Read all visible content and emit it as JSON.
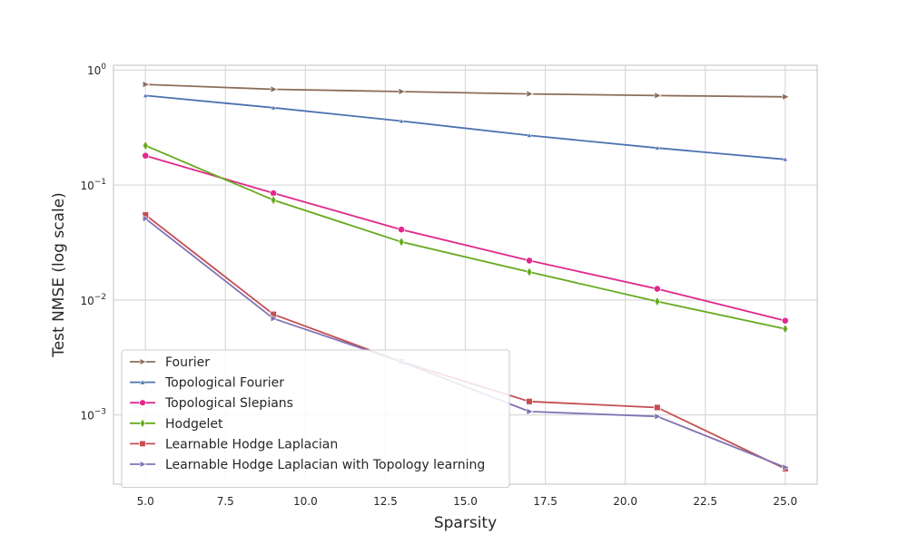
{
  "chart_data": {
    "type": "line",
    "xlabel": "Sparsity",
    "ylabel": "Test NMSE (log scale)",
    "yscale": "log",
    "xlim": [
      4.0,
      26.0
    ],
    "ylim": [
      0.00025,
      1.1
    ],
    "grid": true,
    "legend_position": "lower-left",
    "x": [
      5,
      9,
      13,
      17,
      21,
      25
    ],
    "x_ticks": [
      5.0,
      7.5,
      10.0,
      12.5,
      15.0,
      17.5,
      20.0,
      22.5,
      25.0
    ],
    "x_tick_labels": [
      "5.0",
      "7.5",
      "10.0",
      "12.5",
      "15.0",
      "17.5",
      "20.0",
      "22.5",
      "25.0"
    ],
    "y_ticks": [
      {
        "value": 1,
        "base": "10",
        "exp": "0"
      },
      {
        "value": 0.1,
        "base": "10",
        "exp": "−1"
      },
      {
        "value": 0.01,
        "base": "10",
        "exp": "−2"
      },
      {
        "value": 0.001,
        "base": "10",
        "exp": "−3"
      }
    ],
    "series": [
      {
        "name": "Fourier",
        "color": "#8c6d5a",
        "marker": "triangle-right",
        "values": [
          0.75,
          0.68,
          0.65,
          0.62,
          0.6,
          0.585
        ]
      },
      {
        "name": "Topological Fourier",
        "color": "#4c72b0",
        "marker": "triangle-up",
        "values": [
          0.6,
          0.47,
          0.36,
          0.27,
          0.21,
          0.167
        ]
      },
      {
        "name": "Topological Slepians",
        "color": "#e0288c",
        "marker": "circle",
        "values": [
          0.18,
          0.085,
          0.041,
          0.022,
          0.0125,
          0.0066
        ]
      },
      {
        "name": "Hodgelet",
        "color": "#66aa1e",
        "marker": "diamond",
        "values": [
          0.22,
          0.074,
          0.032,
          0.0175,
          0.0097,
          0.0056
        ]
      },
      {
        "name": "Learnable Hodge Laplacian",
        "color": "#c44e52",
        "marker": "square",
        "values": [
          0.055,
          0.0075,
          0.0029,
          0.00131,
          0.00116,
          0.00034
        ]
      },
      {
        "name": "Learnable Hodge Laplacian with Topology learning",
        "color": "#8172b3",
        "marker": "triangle-right",
        "values": [
          0.051,
          0.0069,
          0.0029,
          0.00107,
          0.00097,
          0.00035
        ]
      }
    ]
  }
}
